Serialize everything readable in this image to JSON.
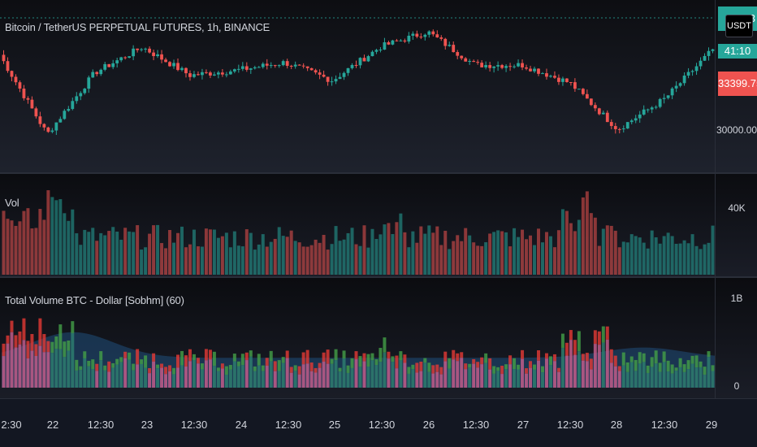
{
  "price_pane": {
    "title": "Bitcoin / TetherUS PERPETUAL FUTURES, 1h, BINANCE",
    "currency_badge": "USDT",
    "current_price": "33399.75",
    "countdown": "41:10",
    "top_tag": "3",
    "scale_labels": [
      "30000.00"
    ],
    "colors": {
      "up": "#26a69a",
      "down": "#ef5350"
    }
  },
  "volume_pane": {
    "title": "Vol",
    "scale_labels": [
      "40K"
    ]
  },
  "indicator_pane": {
    "title": "Total Volume BTC - Dollar [Sobhm] (60)",
    "scale_labels": [
      "1B",
      "0"
    ]
  },
  "time_axis": {
    "labels": [
      "2:30",
      "22",
      "12:30",
      "23",
      "12:30",
      "24",
      "12:30",
      "25",
      "12:30",
      "26",
      "12:30",
      "27",
      "12:30",
      "28",
      "12:30",
      "29"
    ]
  },
  "chart_data": [
    {
      "type": "candlestick",
      "title": "Bitcoin / TetherUS PERPETUAL FUTURES, 1h, BINANCE",
      "x_range": [
        "2:30",
        "29"
      ],
      "y_tick_labels": [
        "30000.00"
      ],
      "last_price": 33399.75,
      "approx_close_path": [
        {
          "x": "2:30",
          "y": 33700
        },
        {
          "x": "22",
          "y": 30600
        },
        {
          "x": "12:30",
          "y": 33000
        },
        {
          "x": "23",
          "y": 34000
        },
        {
          "x": "12:30",
          "y": 32900
        },
        {
          "x": "24",
          "y": 33100
        },
        {
          "x": "12:30",
          "y": 33400
        },
        {
          "x": "25",
          "y": 32700
        },
        {
          "x": "12:30",
          "y": 34000
        },
        {
          "x": "26",
          "y": 34600
        },
        {
          "x": "12:30",
          "y": 33300
        },
        {
          "x": "27",
          "y": 33300
        },
        {
          "x": "12:30",
          "y": 32600
        },
        {
          "x": "28",
          "y": 30800
        },
        {
          "x": "12:30",
          "y": 32000
        },
        {
          "x": "29",
          "y": 33900
        }
      ]
    },
    {
      "type": "bar",
      "title": "Vol",
      "y_tick_labels": [
        "40K"
      ],
      "pattern": "high volume near 22 and before 28, moderate elsewhere"
    },
    {
      "type": "bar",
      "title": "Total Volume BTC - Dollar [Sobhm] (60)",
      "y_tick_labels": [
        "1B",
        "0"
      ],
      "overlay": "area (60-period average)",
      "colors": {
        "btc_up": "#43a047",
        "btc_down": "#e53935",
        "dollar": "#c15c8a",
        "dollar_alt": "#2e7d6f",
        "area": "#1f4f7a"
      }
    }
  ]
}
